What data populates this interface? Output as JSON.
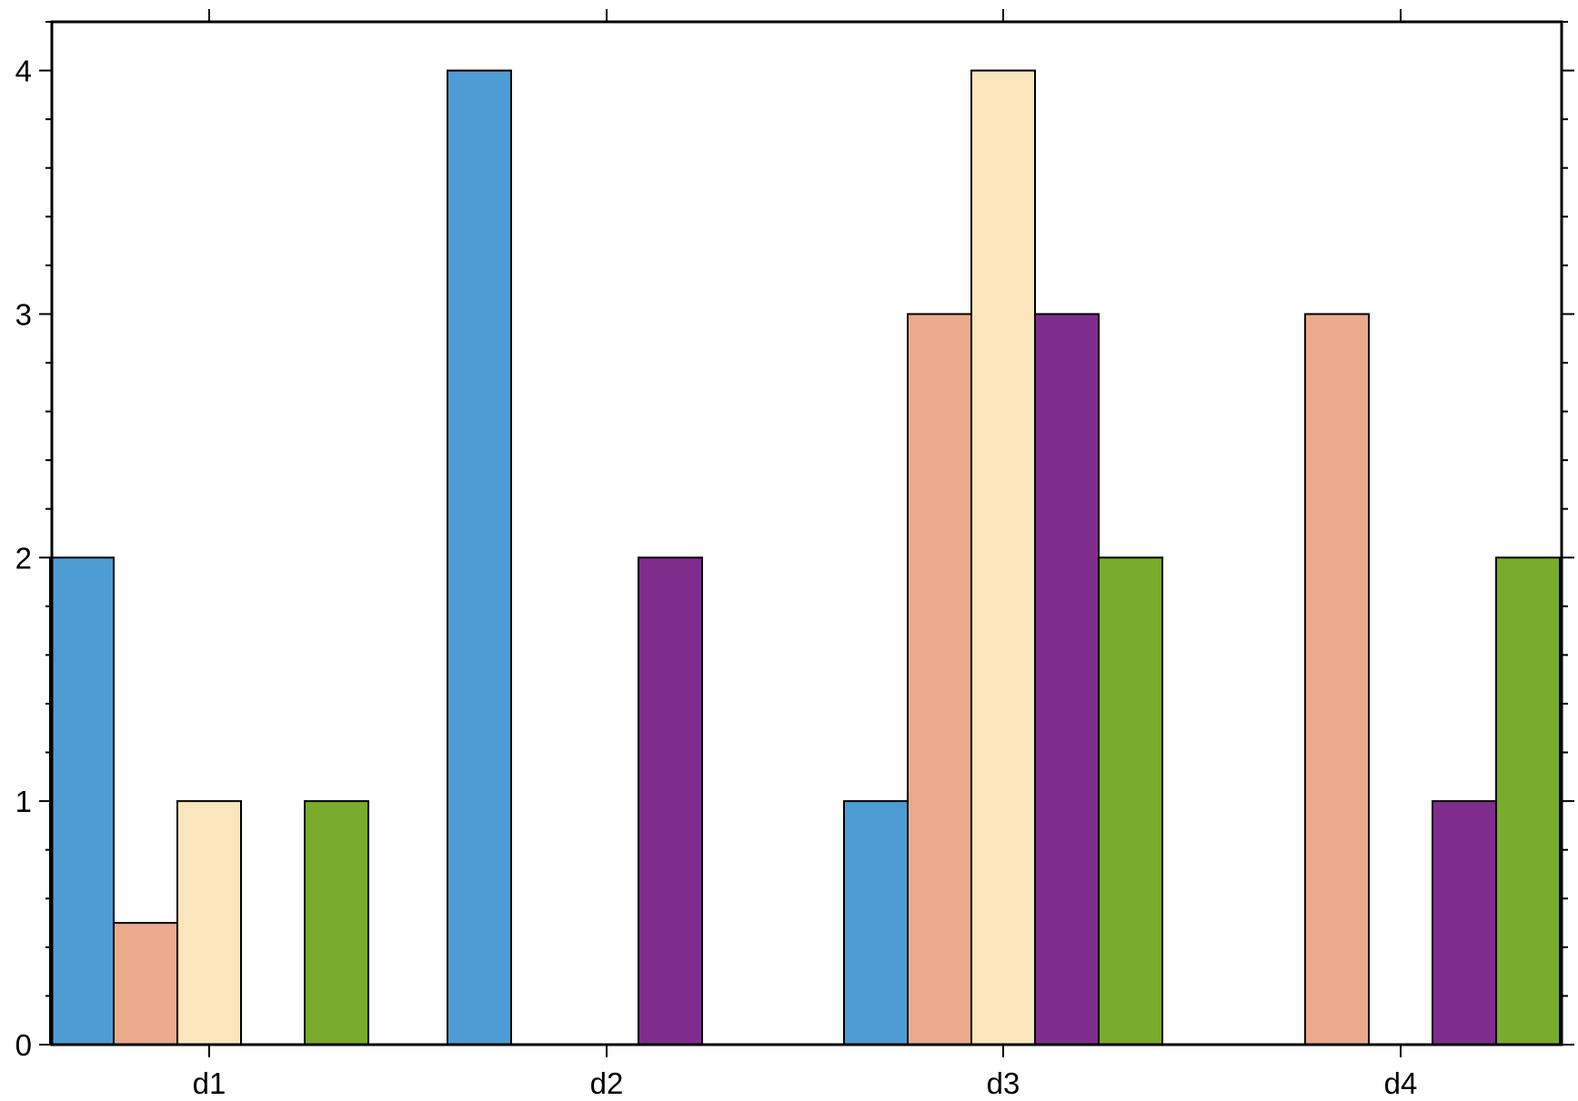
{
  "chart_data": {
    "type": "bar",
    "categories": [
      "d1",
      "d2",
      "d3",
      "d4"
    ],
    "ylim": [
      0,
      4.2
    ],
    "yticks_major": [
      0,
      1,
      2,
      3,
      4
    ],
    "yticks_minor_step": 0.2,
    "grid": false,
    "colors": [
      "#4d9dd4",
      "#eca98b",
      "#fae6bc",
      "#7f2d8c",
      "#79ab2f"
    ],
    "groups": [
      {
        "category": "d1",
        "bars": [
          {
            "series": 0,
            "value": 2
          },
          {
            "series": 1,
            "value": 0.5
          },
          {
            "series": 2,
            "value": 1
          },
          {
            "series": 4,
            "value": 1
          }
        ]
      },
      {
        "category": "d2",
        "bars": [
          {
            "series": 0,
            "value": 4
          },
          {
            "series": 3,
            "value": 2
          }
        ]
      },
      {
        "category": "d3",
        "bars": [
          {
            "series": 0,
            "value": 1
          },
          {
            "series": 1,
            "value": 3
          },
          {
            "series": 2,
            "value": 4
          },
          {
            "series": 3,
            "value": 3
          },
          {
            "series": 4,
            "value": 2
          }
        ]
      },
      {
        "category": "d4",
        "bars": [
          {
            "series": 1,
            "value": 3
          },
          {
            "series": 3,
            "value": 1
          },
          {
            "series": 4,
            "value": 2
          }
        ]
      }
    ]
  }
}
